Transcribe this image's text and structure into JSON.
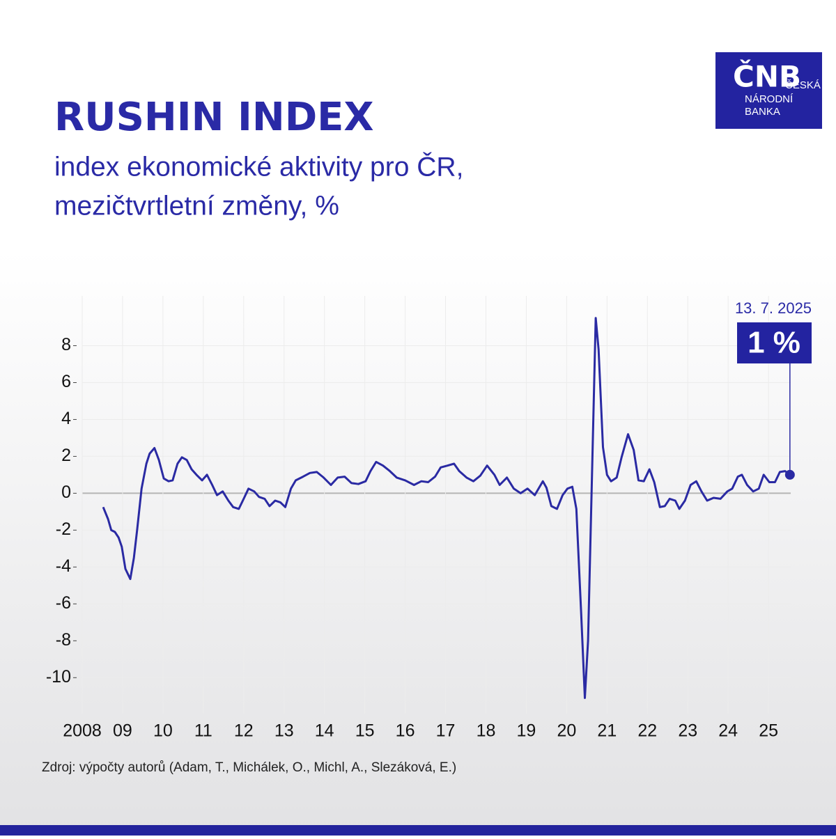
{
  "chart_data": {
    "type": "line",
    "title": "RUSHIN INDEX",
    "subtitle": [
      "index ekonomické aktivity pro ČR,",
      "mezičtvrtletní změny, %"
    ],
    "logo": {
      "mark": "ČNB",
      "lines": [
        "ČESKÁ",
        "NÁRODNÍ",
        "BANKA"
      ]
    },
    "source": "Zdroj: výpočty autorů (Adam, T., Michálek, O., Michl, A., Slezáková, E.)",
    "annotation": {
      "date": "13. 7. 2025",
      "label": "1 %"
    },
    "color": "#2a2aa3",
    "grid": true,
    "xlim": [
      2008,
      2025.55
    ],
    "ylim": [
      -11.5,
      10.7
    ],
    "yticks": [
      8,
      6,
      4,
      2,
      0,
      -2,
      -4,
      -6,
      -8,
      -10
    ],
    "xticks": [
      {
        "value": 2008,
        "label": "2008"
      },
      {
        "value": 2009,
        "label": "09"
      },
      {
        "value": 2010,
        "label": "10"
      },
      {
        "value": 2011,
        "label": "11"
      },
      {
        "value": 2012,
        "label": "12"
      },
      {
        "value": 2013,
        "label": "13"
      },
      {
        "value": 2014,
        "label": "14"
      },
      {
        "value": 2015,
        "label": "15"
      },
      {
        "value": 2016,
        "label": "16"
      },
      {
        "value": 2017,
        "label": "17"
      },
      {
        "value": 2018,
        "label": "18"
      },
      {
        "value": 2019,
        "label": "19"
      },
      {
        "value": 2020,
        "label": "20"
      },
      {
        "value": 2021,
        "label": "21"
      },
      {
        "value": 2022,
        "label": "22"
      },
      {
        "value": 2023,
        "label": "23"
      },
      {
        "value": 2024,
        "label": "24"
      },
      {
        "value": 2025,
        "label": "25"
      }
    ],
    "x": [
      2008.52,
      2008.64,
      2008.72,
      2008.81,
      2008.9,
      2008.98,
      2009.07,
      2009.19,
      2009.28,
      2009.36,
      2009.47,
      2009.59,
      2009.67,
      2009.79,
      2009.9,
      2010.02,
      2010.14,
      2010.24,
      2010.36,
      2010.47,
      2010.59,
      2010.71,
      2010.83,
      2010.97,
      2011.09,
      2011.22,
      2011.34,
      2011.48,
      2011.62,
      2011.74,
      2011.88,
      2012.0,
      2012.12,
      2012.26,
      2012.38,
      2012.52,
      2012.64,
      2012.78,
      2012.91,
      2013.03,
      2013.17,
      2013.29,
      2013.47,
      2013.64,
      2013.81,
      2013.98,
      2014.16,
      2014.33,
      2014.5,
      2014.67,
      2014.84,
      2015.02,
      2015.14,
      2015.28,
      2015.45,
      2015.62,
      2015.79,
      2016.0,
      2016.22,
      2016.4,
      2016.57,
      2016.74,
      2016.88,
      2017.05,
      2017.21,
      2017.34,
      2017.52,
      2017.69,
      2017.86,
      2018.03,
      2018.21,
      2018.34,
      2018.52,
      2018.69,
      2018.86,
      2019.03,
      2019.21,
      2019.41,
      2019.5,
      2019.62,
      2019.76,
      2019.9,
      2020.02,
      2020.14,
      2020.24,
      2020.36,
      2020.45,
      2020.53,
      2020.62,
      2020.72,
      2020.79,
      2020.9,
      2021.0,
      2021.1,
      2021.24,
      2021.36,
      2021.52,
      2021.66,
      2021.78,
      2021.91,
      2022.05,
      2022.17,
      2022.31,
      2022.43,
      2022.55,
      2022.69,
      2022.79,
      2022.93,
      2023.07,
      2023.21,
      2023.34,
      2023.48,
      2023.64,
      2023.81,
      2023.98,
      2024.1,
      2024.24,
      2024.34,
      2024.47,
      2024.62,
      2024.76,
      2024.88,
      2025.02,
      2025.16,
      2025.28,
      2025.41,
      2025.53
    ],
    "values": [
      -0.75,
      -1.4,
      -2.0,
      -2.1,
      -2.4,
      -2.9,
      -4.1,
      -4.65,
      -3.5,
      -2.0,
      0.25,
      1.6,
      2.15,
      2.45,
      1.8,
      0.8,
      0.65,
      0.7,
      1.6,
      1.95,
      1.8,
      1.3,
      1.0,
      0.7,
      1.0,
      0.45,
      -0.1,
      0.1,
      -0.4,
      -0.75,
      -0.85,
      -0.3,
      0.25,
      0.1,
      -0.2,
      -0.3,
      -0.7,
      -0.4,
      -0.5,
      -0.75,
      0.25,
      0.7,
      0.9,
      1.1,
      1.15,
      0.85,
      0.45,
      0.85,
      0.9,
      0.55,
      0.5,
      0.65,
      1.2,
      1.7,
      1.5,
      1.2,
      0.85,
      0.7,
      0.45,
      0.65,
      0.6,
      0.9,
      1.4,
      1.5,
      1.6,
      1.2,
      0.85,
      0.65,
      0.95,
      1.5,
      1.0,
      0.45,
      0.85,
      0.25,
      0,
      0.25,
      -0.1,
      0.65,
      0.3,
      -0.7,
      -0.85,
      -0.1,
      0.25,
      0.35,
      -0.85,
      -6.5,
      -11.1,
      -8,
      0.25,
      9.5,
      7.8,
      2.5,
      1.0,
      0.65,
      0.85,
      1.95,
      3.2,
      2.35,
      0.7,
      0.65,
      1.3,
      0.6,
      -0.75,
      -0.7,
      -0.3,
      -0.4,
      -0.85,
      -0.4,
      0.45,
      0.65,
      0.1,
      -0.4,
      -0.25,
      -0.3,
      0.1,
      0.25,
      0.9,
      1.0,
      0.45,
      0.1,
      0.25,
      1.0,
      0.6,
      0.6,
      1.15,
      1.2,
      1
    ]
  }
}
